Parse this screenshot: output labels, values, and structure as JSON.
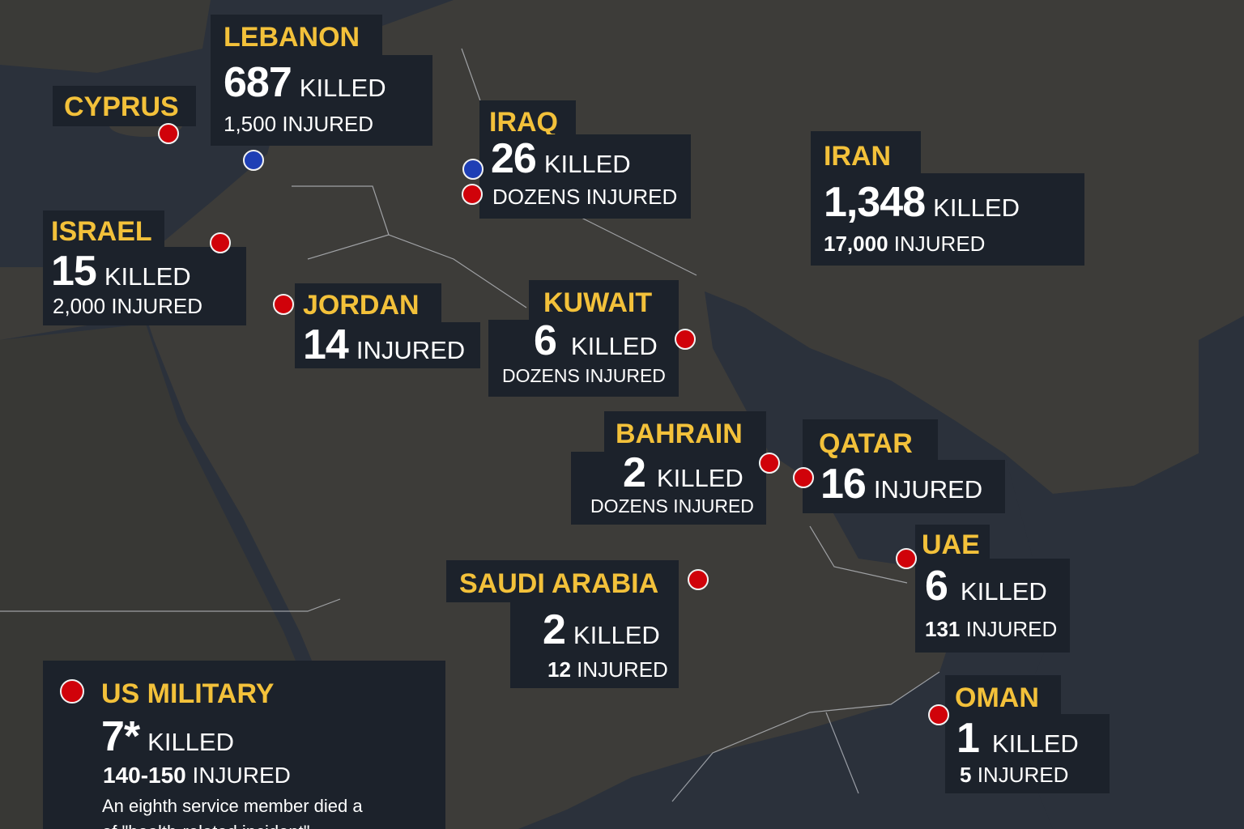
{
  "colors": {
    "label": "#f3c13a",
    "box": "#1c222b",
    "marker_red": "#d0020a",
    "marker_blue": "#1f3fb5",
    "sea": "#2b313b",
    "land": "#3d3c39"
  },
  "countries": {
    "lebanon": {
      "name": "LEBANON",
      "killed": "687",
      "killed_label": "KILLED",
      "injured": "1,500",
      "injured_label": "INJURED"
    },
    "cyprus": {
      "name": "CYPRUS"
    },
    "iraq": {
      "name": "IRAQ",
      "killed": "26",
      "killed_label": "KILLED",
      "injured": "DOZENS",
      "injured_label": "INJURED"
    },
    "iran": {
      "name": "IRAN",
      "killed": "1,348",
      "killed_label": "KILLED",
      "injured": "17,000",
      "injured_label": "INJURED"
    },
    "israel": {
      "name": "ISRAEL",
      "killed": "15",
      "killed_label": "KILLED",
      "injured": "2,000",
      "injured_label": "INJURED"
    },
    "jordan": {
      "name": "JORDAN",
      "injured": "14",
      "injured_label": "INJURED"
    },
    "kuwait": {
      "name": "KUWAIT",
      "killed": "6",
      "killed_label": "KILLED",
      "injured": "DOZENS",
      "injured_label": "INJURED"
    },
    "bahrain": {
      "name": "BAHRAIN",
      "killed": "2",
      "killed_label": "KILLED",
      "injured": "DOZENS",
      "injured_label": "INJURED"
    },
    "qatar": {
      "name": "QATAR",
      "injured": "16",
      "injured_label": "INJURED"
    },
    "uae": {
      "name": "UAE",
      "killed": "6",
      "killed_label": "KILLED",
      "injured": "131",
      "injured_label": "INJURED"
    },
    "saudi": {
      "name": "SAUDI ARABIA",
      "killed": "2",
      "killed_label": "KILLED",
      "injured": "12",
      "injured_label": "INJURED"
    },
    "oman": {
      "name": "OMAN",
      "killed": "1",
      "killed_label": "KILLED",
      "injured": "5",
      "injured_label": "INJURED"
    },
    "us": {
      "name": "US MILITARY",
      "killed": "7*",
      "killed_label": "KILLED",
      "injured": "140-150",
      "injured_label": "INJURED",
      "note1": "An eighth service member died a",
      "note2": "of \"health-related incident\""
    }
  }
}
